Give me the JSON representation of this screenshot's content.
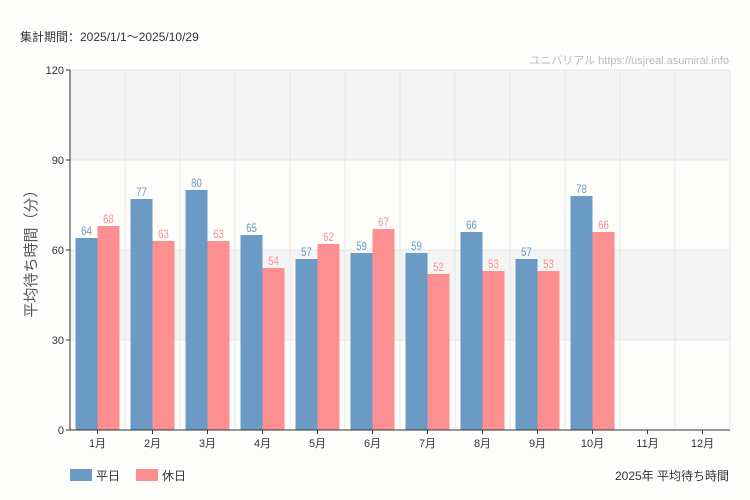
{
  "period_label": "集計期間：2025/1/1～2025/10/29",
  "watermark": "ユニバリアル  https://usjreal.asumirai.info",
  "chart_data": {
    "type": "bar",
    "title": "2025年 平均待ち時間",
    "ylabel": "平均待ち時間（分）",
    "xlabel": "",
    "ylim": [
      0,
      120
    ],
    "yticks": [
      0,
      30,
      60,
      90,
      120
    ],
    "grid": true,
    "legend_position": "bottom-left",
    "categories": [
      "1月",
      "2月",
      "3月",
      "4月",
      "5月",
      "6月",
      "7月",
      "8月",
      "9月",
      "10月",
      "11月",
      "12月"
    ],
    "series": [
      {
        "name": "平日",
        "color": "#6b9ac4",
        "values": [
          64,
          77,
          80,
          65,
          57,
          59,
          59,
          66,
          57,
          78,
          null,
          null
        ]
      },
      {
        "name": "休日",
        "color": "#fe8f90",
        "values": [
          68,
          63,
          63,
          54,
          62,
          67,
          52,
          53,
          53,
          66,
          null,
          null
        ]
      }
    ]
  }
}
